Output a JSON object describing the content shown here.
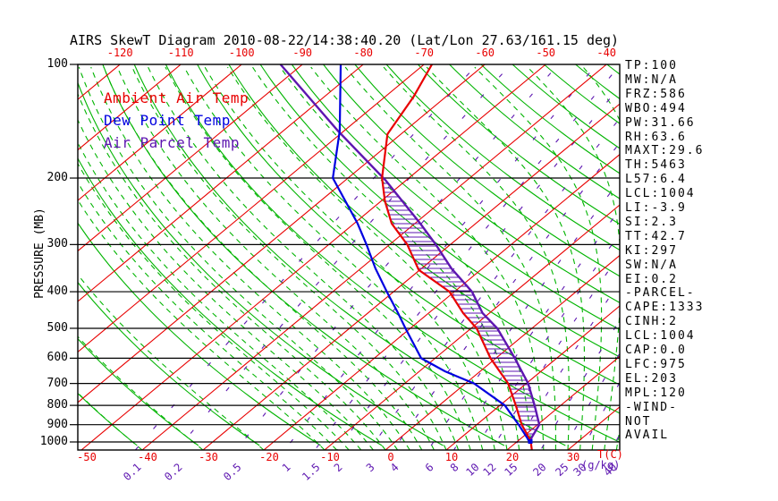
{
  "title": "AIRS SkewT Diagram 2010-08-22/14:38:40.20 (Lat/Lon 27.63/161.15 deg)",
  "legend": [
    {
      "label": "Ambient Air Temp",
      "color": "#e80000"
    },
    {
      "label": "Dew Point Temp",
      "color": "#0000e0"
    },
    {
      "label": "Air Parcel Temp",
      "color": "#5d16b0"
    }
  ],
  "axes": {
    "pressure_title": "PRESSURE (MB)",
    "temp_title": "T(C)",
    "mixing_title": "(g/kg)",
    "pressure_ticks": [
      100,
      200,
      300,
      400,
      500,
      600,
      700,
      800,
      900,
      1000
    ],
    "top_temp_ticks": [
      -120,
      -110,
      -100,
      -90,
      -80,
      -70,
      -60,
      -50,
      -40
    ],
    "bottom_temp_ticks": [
      -50,
      -40,
      -30,
      -20,
      -10,
      0,
      10,
      20,
      30
    ],
    "mixing_ratios": [
      0.1,
      0.2,
      0.5,
      1,
      1.5,
      2,
      3,
      4,
      6,
      8,
      10,
      12,
      15,
      20,
      25,
      30,
      40
    ]
  },
  "stats": [
    "TP:100",
    "MW:N/A",
    "FRZ:586",
    "WBO:494",
    "PW:31.66",
    "RH:63.6",
    "MAXT:29.6",
    "TH:5463",
    "L57:6.4",
    "LCL:1004",
    "LI:-3.9",
    "SI:2.3",
    "TT:42.7",
    "KI:297",
    "SW:N/A",
    "EI:0.2",
    "-PARCEL-",
    "CAPE:1333",
    "CINH:2",
    "LCL:1004",
    "CAP:0.0",
    "LFC:975",
    "EL:203",
    "MPL:120",
    "-WIND-",
    "NOT",
    "AVAIL"
  ],
  "colors": {
    "isotherm": "#e80000",
    "adiabat": "#00b400",
    "mixing": "#5d16b0",
    "pressure_line": "#000000",
    "ambient": "#e80000",
    "dewpoint": "#0000e0",
    "parcel": "#5d16b0",
    "hatch": "#5d16b0",
    "marker": "#0000e0"
  },
  "chart_data": {
    "type": "line",
    "diagram": "skew-t-log-p",
    "x_axis": {
      "label": "T(C)",
      "unit": "degC"
    },
    "y_axis": {
      "label": "PRESSURE (MB)",
      "scale": "log",
      "range_mb": [
        100,
        1050
      ]
    },
    "mixing_ratio_lines_g_per_kg": [
      0.1,
      0.2,
      0.5,
      1,
      1.5,
      2,
      3,
      4,
      6,
      8,
      10,
      12,
      15,
      20,
      25,
      30,
      40
    ],
    "series": [
      {
        "name": "Ambient Air Temp",
        "color": "#e80000",
        "points_p_t": [
          [
            100,
            -68.7
          ],
          [
            122,
            -65.3
          ],
          [
            153,
            -62.2
          ],
          [
            200,
            -54.4
          ],
          [
            230,
            -49.4
          ],
          [
            264,
            -43.8
          ],
          [
            300,
            -37.1
          ],
          [
            350,
            -30.2
          ],
          [
            400,
            -20.8
          ],
          [
            456,
            -14.3
          ],
          [
            500,
            -9.1
          ],
          [
            600,
            -0.9
          ],
          [
            700,
            7.0
          ],
          [
            800,
            12.6
          ],
          [
            900,
            17.4
          ],
          [
            975,
            21.2
          ],
          [
            1005,
            22.5
          ],
          [
            1048,
            24.0
          ]
        ]
      },
      {
        "name": "Dew Point Temp",
        "color": "#0000e0",
        "points_p_t": [
          [
            100,
            -83.7
          ],
          [
            150,
            -70.7
          ],
          [
            200,
            -62.5
          ],
          [
            264,
            -49.4
          ],
          [
            300,
            -43.8
          ],
          [
            347,
            -37.6
          ],
          [
            400,
            -31.1
          ],
          [
            456,
            -25.0
          ],
          [
            500,
            -20.8
          ],
          [
            600,
            -12.3
          ],
          [
            650,
            -5.8
          ],
          [
            700,
            1.4
          ],
          [
            800,
            10.8
          ],
          [
            900,
            16.9
          ],
          [
            975,
            20.9
          ],
          [
            1005,
            22.3
          ]
        ]
      },
      {
        "name": "Air Parcel Temp",
        "color": "#5d16b0",
        "points_p_t": [
          [
            100,
            -93.6
          ],
          [
            150,
            -71.0
          ],
          [
            203,
            -53.3
          ],
          [
            264,
            -39.1
          ],
          [
            300,
            -32.4
          ],
          [
            347,
            -25.1
          ],
          [
            400,
            -17.1
          ],
          [
            456,
            -11.1
          ],
          [
            500,
            -5.7
          ],
          [
            600,
            3.1
          ],
          [
            700,
            10.3
          ],
          [
            800,
            15.7
          ],
          [
            900,
            20.3
          ],
          [
            975,
            21.6
          ],
          [
            1005,
            22.5
          ]
        ]
      }
    ],
    "cape_hatch": {
      "between": [
        "Air Parcel Temp",
        "Ambient Air Temp"
      ],
      "pressure_range_mb": [
        206,
        985
      ],
      "equilibrium_level_mb": 203,
      "lfc_mb": 975
    }
  }
}
